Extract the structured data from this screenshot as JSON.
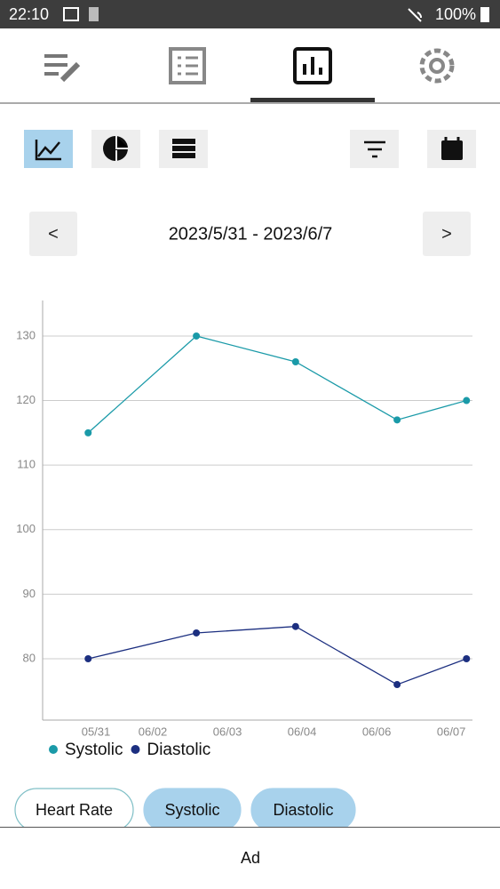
{
  "status_bar": {
    "time": "22:10",
    "battery": "100%"
  },
  "date_nav": {
    "prev": "<",
    "range": "2023/5/31 - 2023/6/7",
    "next": ">"
  },
  "chart_data": {
    "type": "line",
    "x": [
      0.61,
      2.06,
      3.39,
      4.75,
      5.68
    ],
    "xlim": [
      0,
      5.76
    ],
    "xticks": [
      {
        "value": 0.714,
        "label": "05/31"
      },
      {
        "value": 1.476,
        "label": "06/02"
      },
      {
        "value": 2.476,
        "label": "06/03"
      },
      {
        "value": 3.476,
        "label": "06/04"
      },
      {
        "value": 4.476,
        "label": "06/06"
      },
      {
        "value": 5.476,
        "label": "06/07"
      }
    ],
    "ylim": [
      70.5,
      135.5
    ],
    "yticks": [
      80,
      90,
      100,
      110,
      120,
      130
    ],
    "grid": true,
    "series": [
      {
        "name": "Systolic",
        "color": "#1a9aa8",
        "values": [
          115,
          130,
          126,
          117,
          120
        ]
      },
      {
        "name": "Diastolic",
        "color": "#1c2f80",
        "values": [
          80,
          84,
          85,
          76,
          80
        ]
      }
    ]
  },
  "chips": [
    "Heart Rate",
    "Systolic",
    "Diastolic"
  ],
  "ad": "Ad"
}
